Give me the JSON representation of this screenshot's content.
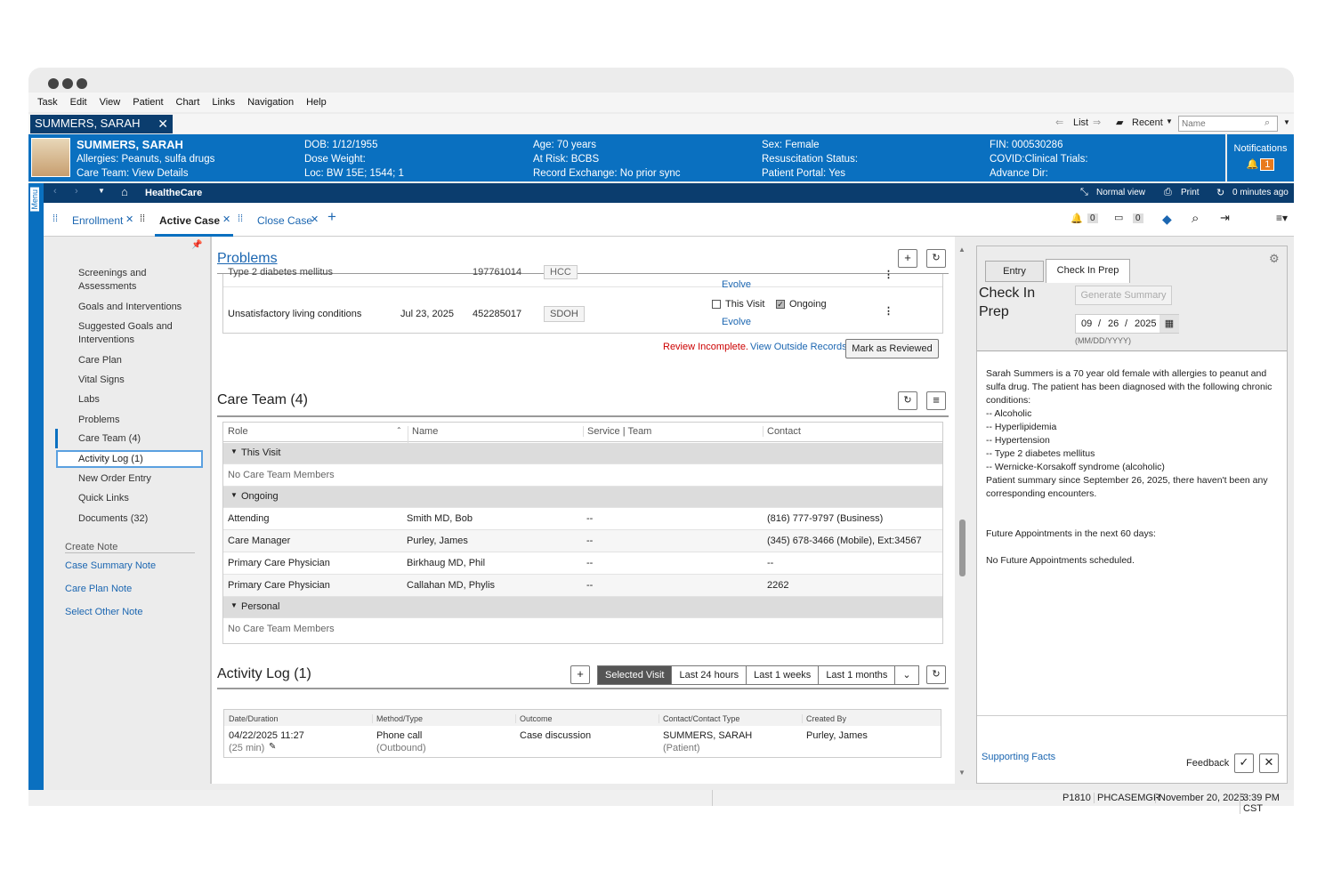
{
  "menu": [
    "Task",
    "Edit",
    "View",
    "Patient",
    "Chart",
    "Links",
    "Navigation",
    "Help"
  ],
  "patient_tab": "SUMMERS, SARAH",
  "top_right": {
    "list": "List",
    "recent": "Recent",
    "name_placeholder": "Name"
  },
  "banner": {
    "name": "SUMMERS, SARAH",
    "allergies": "Allergies: Peanuts, sulfa drugs",
    "care_team": "Care Team: View Details",
    "dob": "DOB: 1/12/1955",
    "dose_weight": "Dose Weight:",
    "loc": "Loc: BW 15E; 1544; 1",
    "age": "Age: 70 years",
    "at_risk": "At Risk: BCBS",
    "record_exchange": "Record Exchange: No prior sync",
    "sex": "Sex: Female",
    "resus": "Resuscitation Status:",
    "portal": "Patient Portal: Yes",
    "fin": "FIN: 000530286",
    "covid": "COVID:Clinical Trials:",
    "advance": "Advance Dir:",
    "notifications": "Notifications",
    "notif_count": "1"
  },
  "toolbar": {
    "home": "HealtheCare",
    "normal_view": "Normal view",
    "print": "Print",
    "refresh": "0 minutes ago",
    "menu_label": "Menu"
  },
  "tabs": {
    "enrollment": "Enrollment",
    "active_case": "Active Case",
    "close_case": "Close Case",
    "add": "+"
  },
  "tab_counts": {
    "bell": "0",
    "inbox": "0"
  },
  "nav": {
    "items": [
      "Screenings and Assessments",
      "Goals and Interventions",
      "Suggested Goals and Interventions",
      "Care Plan",
      "Vital Signs",
      "Labs",
      "Problems",
      "Care Team (4)",
      "Activity Log (1)",
      "New Order Entry",
      "Quick Links",
      "Documents (32)"
    ],
    "create_note": "Create Note",
    "notes": [
      "Case Summary Note",
      "Care Plan Note",
      "Select Other Note"
    ]
  },
  "problems": {
    "title": "Problems",
    "row0": {
      "name": "Type 2 diabetes mellitus",
      "code": "197761014",
      "tag": "HCC",
      "evolve": "Evolve"
    },
    "row1": {
      "name": "Unsatisfactory living conditions",
      "date": "Jul 23, 2025",
      "code": "452285017",
      "tag": "SDOH",
      "this_visit": "This Visit",
      "ongoing": "Ongoing",
      "evolve": "Evolve"
    },
    "review_incomplete": "Review Incomplete.",
    "view_outside": "View Outside Records",
    "mark_reviewed": "Mark as Reviewed"
  },
  "care_team": {
    "title": "Care Team (4)",
    "headers": [
      "Role",
      "Name",
      "Service | Team",
      "Contact"
    ],
    "this_visit": "This Visit",
    "none1": "No Care Team Members",
    "ongoing": "Ongoing",
    "rows": [
      [
        "Attending",
        "Smith MD, Bob",
        "--",
        "(816) 777-9797 (Business)"
      ],
      [
        "Care Manager",
        "Purley, James",
        "--",
        "(345) 678-3466 (Mobile), Ext:34567"
      ],
      [
        "Primary Care Physician",
        "Birkhaug MD, Phil",
        "--",
        "--"
      ],
      [
        "Primary Care Physician",
        "Callahan MD, Phylis",
        "--",
        "2262"
      ]
    ],
    "personal": "Personal",
    "none2": "No Care Team Members"
  },
  "activity": {
    "title": "Activity Log (1)",
    "filters": [
      "Selected Visit",
      "Last 24 hours",
      "Last 1 weeks",
      "Last 1 months"
    ],
    "headers": [
      "Date/Duration",
      "Method/Type",
      "Outcome",
      "Contact/Contact Type",
      "Created By"
    ],
    "row": {
      "date": "04/22/2025 11:27",
      "dur": "(25 min)",
      "method": "Phone call",
      "method_sub": "(Outbound)",
      "outcome": "Case discussion",
      "contact": "SUMMERS, SARAH",
      "contact_sub": "(Patient)",
      "created": "Purley, James"
    }
  },
  "right": {
    "tab_entry": "Entry",
    "tab_checkin": "Check In Prep",
    "heading": "Check In Prep",
    "generate": "Generate Summary",
    "mm": "09",
    "dd": "26",
    "yyyy": "2025",
    "fmt": "(MM/DD/YYYY)",
    "summary": [
      "Sarah Summers is a 70 year old female with allergies to peanut and sulfa drug. The patient has been diagnosed with the following chronic conditions:",
      "-- Alcoholic",
      "-- Hyperlipidemia",
      "-- Hypertension",
      "-- Type 2 diabetes mellitus",
      "-- Wernicke-Korsakoff syndrome (alcoholic)",
      "Patient summary since September 26, 2025, there haven't been any corresponding encounters."
    ],
    "future": "Future Appointments in the next 60 days:",
    "no_future": "No Future Appointments scheduled.",
    "supporting": "Supporting Facts",
    "feedback": "Feedback"
  },
  "status": {
    "code": "P1810",
    "user": "PHCASEMGR",
    "date": "November 20, 2025",
    "time": "3:39 PM CST"
  }
}
